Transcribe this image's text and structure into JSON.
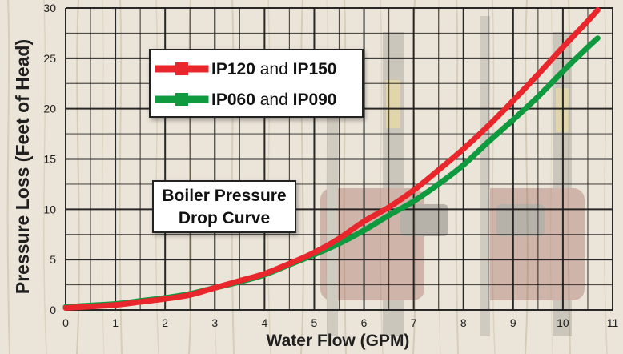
{
  "chart_data": {
    "type": "line",
    "xlabel": "Water Flow (GPM)",
    "ylabel": "Pressure Loss (Feet of Head)",
    "xlim": [
      0,
      11
    ],
    "ylim": [
      0,
      30
    ],
    "x_ticks": [
      "0",
      "1",
      "2",
      "3",
      "4",
      "5",
      "6",
      "7",
      "8",
      "9",
      "10",
      "11"
    ],
    "y_ticks": [
      "0",
      "5",
      "10",
      "15",
      "20",
      "25",
      "30"
    ],
    "grid": true,
    "legend_placement": "top-left",
    "annotation": [
      "Boiler Pressure",
      "Drop Curve"
    ],
    "series": [
      {
        "name_parts": [
          "IP120",
          " and ",
          "IP150"
        ],
        "color": "#e8262b",
        "x": [
          0,
          1,
          1.5,
          2,
          2.5,
          3,
          3.5,
          4,
          4.5,
          5,
          5.5,
          6,
          6.5,
          7,
          7.5,
          8,
          8.5,
          9,
          9.5,
          10,
          10.5,
          10.7
        ],
        "y": [
          0.2,
          0.5,
          0.8,
          1.1,
          1.5,
          2.2,
          2.9,
          3.6,
          4.6,
          5.7,
          7.1,
          8.8,
          10.2,
          11.9,
          13.9,
          16.0,
          18.3,
          20.8,
          23.4,
          26.1,
          28.7,
          29.8
        ]
      },
      {
        "name_parts": [
          "IP060",
          " and ",
          "IP090"
        ],
        "color": "#0f9a3f",
        "x": [
          0,
          1,
          1.5,
          2,
          2.5,
          3,
          3.5,
          4,
          4.5,
          5,
          5.5,
          6,
          6.5,
          7,
          7.5,
          8,
          8.5,
          9,
          9.5,
          10,
          10.5,
          10.7
        ],
        "y": [
          0.3,
          0.6,
          0.9,
          1.2,
          1.6,
          2.2,
          2.8,
          3.5,
          4.5,
          5.5,
          6.6,
          7.9,
          9.4,
          10.8,
          12.5,
          14.4,
          16.7,
          18.9,
          21.2,
          23.7,
          26.1,
          27.0
        ]
      }
    ]
  }
}
